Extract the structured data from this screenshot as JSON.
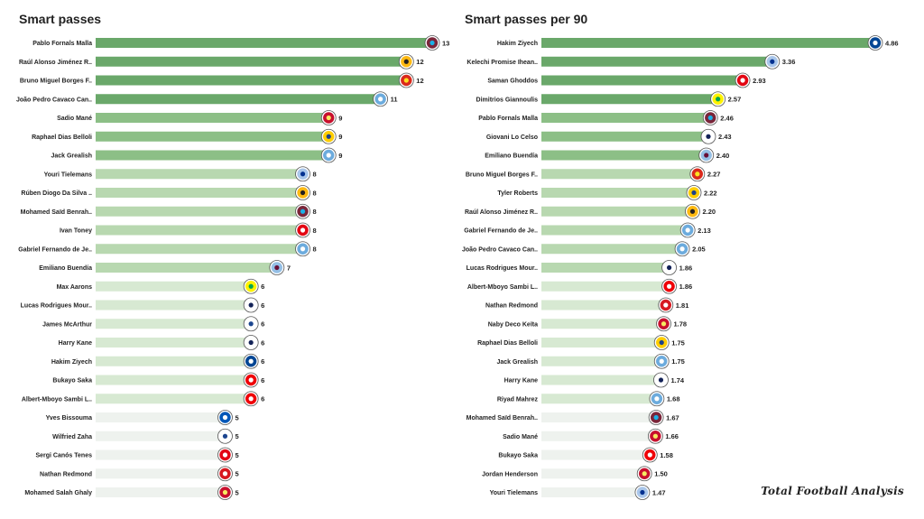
{
  "chart_data": [
    {
      "type": "bar",
      "orientation": "horizontal",
      "title": "Smart passes",
      "categories": [
        "Pablo Fornals Malla",
        "Raúl Alonso Jiménez R..",
        "Bruno Miguel Borges F..",
        "João Pedro Cavaco Can..",
        "Sadio Mané",
        "Raphael Dias Belloli",
        "Jack Grealish",
        "Youri Tielemans",
        "Rúben Diogo Da Silva ..",
        "Mohamed Saïd Benrah..",
        "Ivan Toney",
        "Gabriel Fernando de Je..",
        "Emiliano Buendía",
        "Max Aarons",
        "Lucas Rodrigues Mour..",
        "James McArthur",
        "Harry Kane",
        "Hakim Ziyech",
        "Bukayo Saka",
        "Albert-Mboyo Sambi L..",
        "Yves Bissouma",
        "Wilfried Zaha",
        "Sergi Canós Tenes",
        "Nathan Redmond",
        "Mohamed  Salah Ghaly"
      ],
      "values": [
        13,
        12,
        12,
        11,
        9,
        9,
        9,
        8,
        8,
        8,
        8,
        8,
        7,
        6,
        6,
        6,
        6,
        6,
        6,
        6,
        5,
        5,
        5,
        5,
        5
      ],
      "value_labels": [
        "13",
        "12",
        "12",
        "11",
        "9",
        "9",
        "9",
        "8",
        "8",
        "8",
        "8",
        "8",
        "7",
        "6",
        "6",
        "6",
        "6",
        "6",
        "6",
        "6",
        "5",
        "5",
        "5",
        "5",
        "5"
      ],
      "clubs": [
        "West Ham",
        "Wolves",
        "Man Utd",
        "Man City",
        "Liverpool",
        "Leeds",
        "Man City",
        "Leicester",
        "Wolves",
        "West Ham",
        "Brentford",
        "Man City",
        "Aston Villa",
        "Norwich",
        "Tottenham",
        "Crystal Palace",
        "Tottenham",
        "Chelsea",
        "Arsenal",
        "Arsenal",
        "Brighton",
        "Crystal Palace",
        "Brentford",
        "Southampton",
        "Liverpool"
      ],
      "xlim": [
        0,
        13
      ],
      "grid": false,
      "legend": "none"
    },
    {
      "type": "bar",
      "orientation": "horizontal",
      "title": "Smart passes per 90",
      "categories": [
        "Hakim Ziyech",
        "Kelechi Promise Ihean..",
        "Saman Ghoddos",
        "Dimitrios Giannoulis",
        "Pablo Fornals Malla",
        "Giovani Lo Celso",
        "Emiliano Buendía",
        "Bruno Miguel Borges F..",
        "Tyler Roberts",
        "Raúl Alonso Jiménez R..",
        "Gabriel Fernando de Je..",
        "João Pedro Cavaco Can..",
        "Lucas Rodrigues Mour..",
        "Albert-Mboyo Sambi L..",
        "Nathan Redmond",
        "Naby Deco Keïta",
        "Raphael Dias Belloli",
        "Jack Grealish",
        "Harry Kane",
        "Riyad Mahrez",
        "Mohamed Saïd Benrah..",
        "Sadio Mané",
        "Bukayo Saka",
        "Jordan Henderson",
        "Youri Tielemans"
      ],
      "values": [
        4.86,
        3.36,
        2.93,
        2.57,
        2.46,
        2.43,
        2.4,
        2.27,
        2.22,
        2.2,
        2.13,
        2.05,
        1.86,
        1.86,
        1.81,
        1.78,
        1.75,
        1.75,
        1.74,
        1.68,
        1.67,
        1.66,
        1.58,
        1.5,
        1.47
      ],
      "value_labels": [
        "4.86",
        "3.36",
        "2.93",
        "2.57",
        "2.46",
        "2.43",
        "2.40",
        "2.27",
        "2.22",
        "2.20",
        "2.13",
        "2.05",
        "1.86",
        "1.86",
        "1.81",
        "1.78",
        "1.75",
        "1.75",
        "1.74",
        "1.68",
        "1.67",
        "1.66",
        "1.58",
        "1.50",
        "1.47"
      ],
      "clubs": [
        "Chelsea",
        "Leicester",
        "Brentford",
        "Norwich",
        "West Ham",
        "Tottenham",
        "Aston Villa",
        "Man Utd",
        "Leeds",
        "Wolves",
        "Man City",
        "Man City",
        "Tottenham",
        "Arsenal",
        "Southampton",
        "Liverpool",
        "Leeds",
        "Man City",
        "Tottenham",
        "Man City",
        "West Ham",
        "Liverpool",
        "Arsenal",
        "Liverpool",
        "Leicester"
      ],
      "xlim": [
        0,
        4.86
      ],
      "grid": false,
      "legend": "none"
    }
  ],
  "club_colors": {
    "West Ham": {
      "bg": "#7a263a",
      "fg": "#1bb1e7"
    },
    "Wolves": {
      "bg": "#fdb913",
      "fg": "#231f20"
    },
    "Man Utd": {
      "bg": "#da291c",
      "fg": "#fbe122"
    },
    "Man City": {
      "bg": "#6cabdd",
      "fg": "#ffffff"
    },
    "Liverpool": {
      "bg": "#c8102e",
      "fg": "#f6eb61"
    },
    "Leeds": {
      "bg": "#ffcd00",
      "fg": "#1d428a"
    },
    "Leicester": {
      "bg": "#a9c6ea",
      "fg": "#003090"
    },
    "Brentford": {
      "bg": "#e30613",
      "fg": "#ffffff"
    },
    "Aston Villa": {
      "bg": "#95bfe5",
      "fg": "#670e36"
    },
    "Norwich": {
      "bg": "#fff200",
      "fg": "#00a650"
    },
    "Tottenham": {
      "bg": "#ffffff",
      "fg": "#132257"
    },
    "Crystal Palace": {
      "bg": "#ffffff",
      "fg": "#1b458f"
    },
    "Chelsea": {
      "bg": "#034694",
      "fg": "#ffffff"
    },
    "Arsenal": {
      "bg": "#ef0107",
      "fg": "#ffffff"
    },
    "Brighton": {
      "bg": "#0057b8",
      "fg": "#ffffff"
    },
    "Southampton": {
      "bg": "#d71920",
      "fg": "#ffffff"
    }
  },
  "bar_colors": [
    "#6aa86a",
    "#8cbf86",
    "#b8d8b0",
    "#d7e9d2",
    "#eef2ee"
  ],
  "watermark": "Total Football Analysis"
}
